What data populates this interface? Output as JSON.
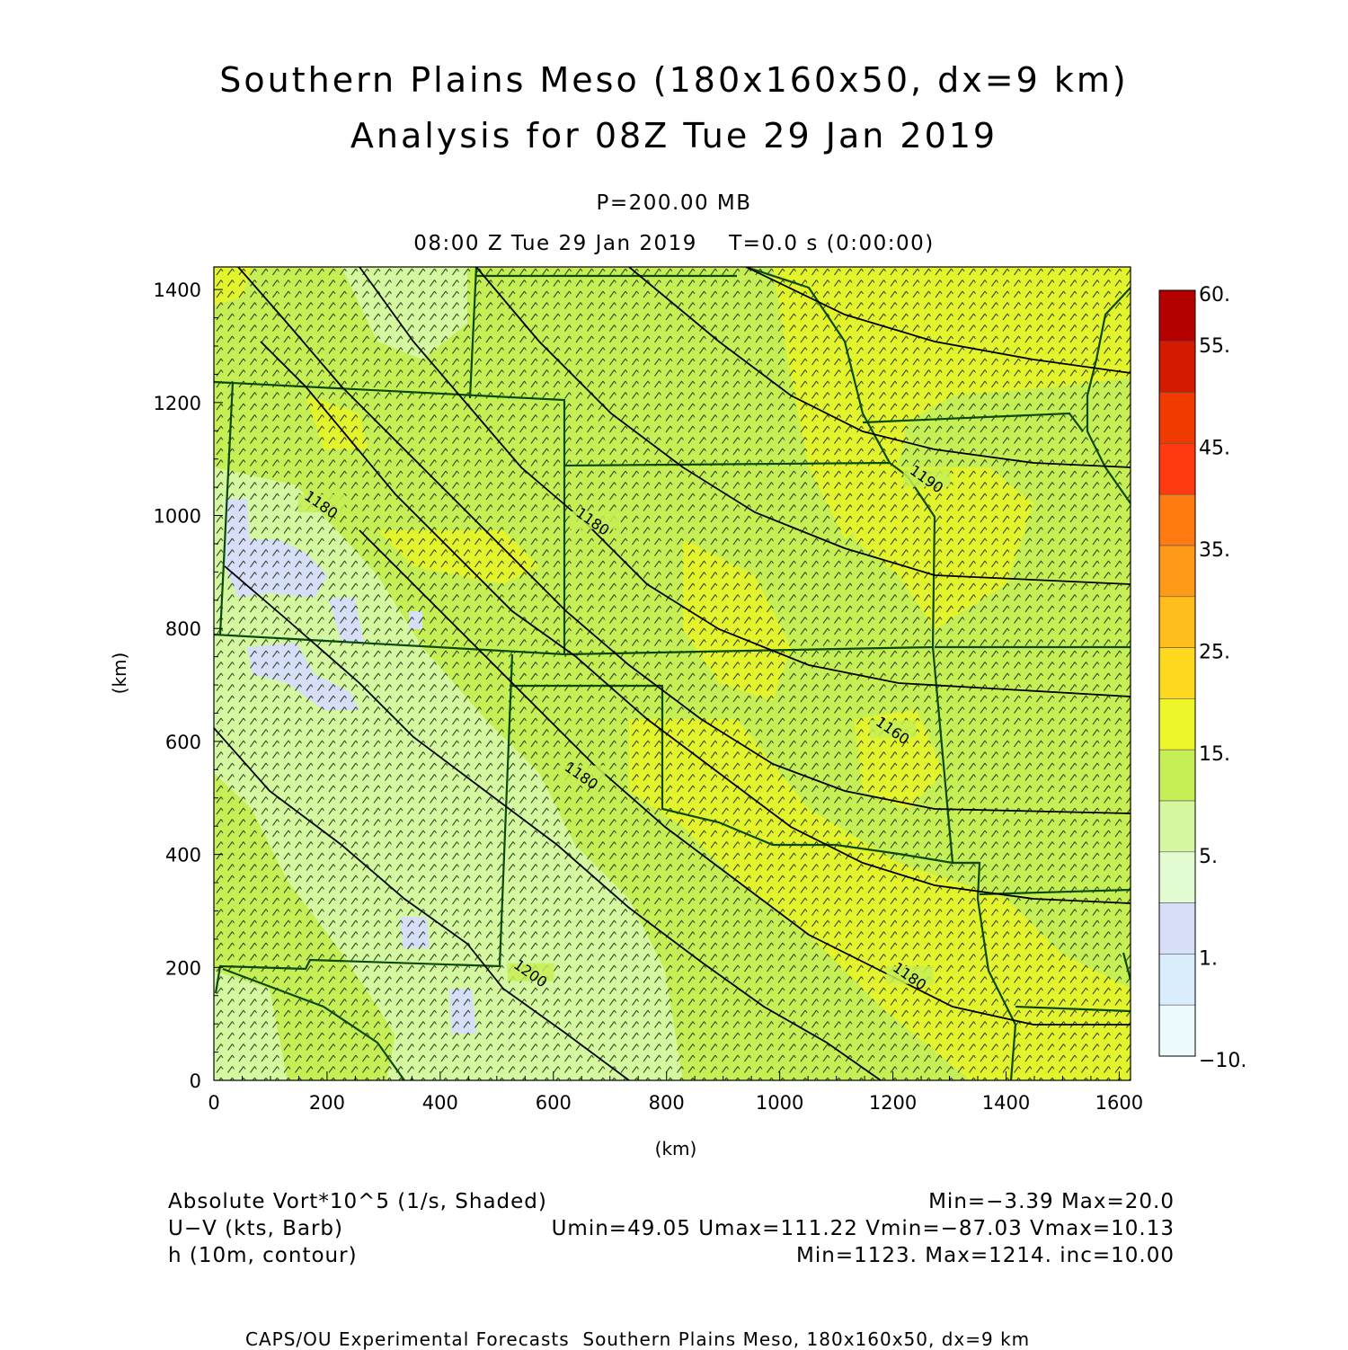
{
  "title": {
    "line1": "Southern Plains Meso (180x160x50, dx=9 km)",
    "line2": "Analysis for 08Z Tue 29 Jan 2019"
  },
  "subtitle": {
    "level": "P=200.00 MB",
    "time": "08:00 Z Tue 29 Jan 2019    T=0.0 s (0:00:00)"
  },
  "axes": {
    "x_unit": "(km)",
    "y_unit": "(km)",
    "x_range": [
      0,
      1620
    ],
    "y_range": [
      0,
      1440
    ],
    "x_ticks": [
      "0",
      "200",
      "400",
      "600",
      "800",
      "1000",
      "1200",
      "1400",
      "1600"
    ],
    "y_ticks": [
      "0",
      "200",
      "400",
      "600",
      "800",
      "1000",
      "1200",
      "1400"
    ]
  },
  "colorbar": {
    "labels": [
      "60.",
      "55.",
      "45.",
      "35.",
      "25.",
      "15.",
      "5.",
      "1.",
      "−10."
    ],
    "colors_top_to_bottom": [
      "#b50000",
      "#d41a00",
      "#f03a00",
      "#ff3a12",
      "#ff7a10",
      "#ff9a18",
      "#ffbd1e",
      "#ffd820",
      "#eef52a",
      "#c6ee55",
      "#d5f7a0",
      "#e2fbd0",
      "#d6def8",
      "#d9edfd",
      "#eefbfe"
    ]
  },
  "contour_labels": [
    {
      "text": "1180",
      "x": 190,
      "y": 1020
    },
    {
      "text": "1180",
      "x": 670,
      "y": 990
    },
    {
      "text": "1190",
      "x": 1260,
      "y": 1065
    },
    {
      "text": "1160",
      "x": 1200,
      "y": 620
    },
    {
      "text": "1180",
      "x": 650,
      "y": 540
    },
    {
      "text": "1200",
      "x": 560,
      "y": 190
    },
    {
      "text": "1180",
      "x": 1230,
      "y": 185
    }
  ],
  "legend": {
    "field1_name": "Absolute Vort*10^5 (1/s, Shaded)",
    "field1_stats": "Min=−3.39 Max=20.0",
    "field2_name": "U−V (kts, Barb)",
    "field2_stats": "Umin=49.05 Umax=111.22 Vmin=−87.03 Vmax=10.13",
    "field3_name": "h (10m, contour)",
    "field3_stats": "Min=1123. Max=1214. inc=10.00"
  },
  "footer": "CAPS/OU Experimental Forecasts  Southern Plains Meso, 180x160x50, dx=9 km",
  "colors": {
    "base_field": "#c6ee55",
    "yellow_patch": "#e4f42c",
    "light_green_patch": "#d5f7a0",
    "blue_patch": "#d6def8",
    "boundaries": "#0b4a0b",
    "contours": "#000000"
  }
}
